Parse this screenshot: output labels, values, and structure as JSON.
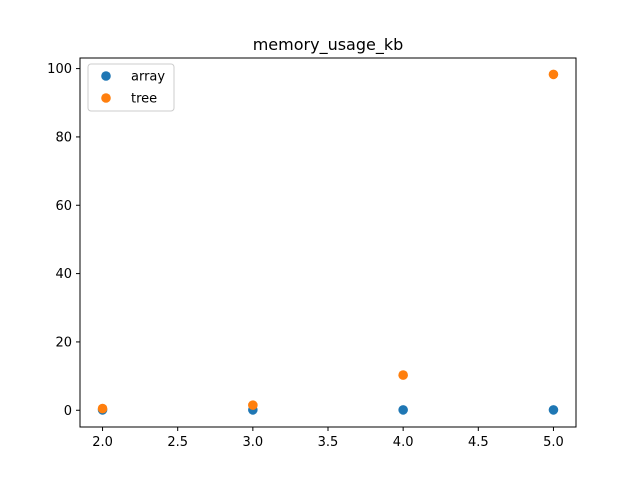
{
  "chart_data": {
    "type": "scatter",
    "title": "memory_usage_kb",
    "xlabel": "",
    "ylabel": "",
    "xlim": [
      1.85,
      5.15
    ],
    "ylim": [
      -4.9,
      103.1
    ],
    "xticks": [
      2.0,
      2.5,
      3.0,
      3.5,
      4.0,
      4.5,
      5.0
    ],
    "xtick_labels": [
      "2.0",
      "2.5",
      "3.0",
      "3.5",
      "4.0",
      "4.5",
      "5.0"
    ],
    "yticks": [
      0,
      20,
      40,
      60,
      80,
      100
    ],
    "ytick_labels": [
      "0",
      "20",
      "40",
      "60",
      "80",
      "100"
    ],
    "grid": false,
    "legend_position": "top-left",
    "series": [
      {
        "name": "array",
        "color": "#1f77b4",
        "x": [
          2,
          3,
          4,
          5
        ],
        "y": [
          0.1,
          0.1,
          0.1,
          0.1
        ]
      },
      {
        "name": "tree",
        "color": "#ff7f0e",
        "x": [
          2,
          3,
          4,
          5
        ],
        "y": [
          0.5,
          1.5,
          10.3,
          98.3
        ]
      }
    ]
  }
}
